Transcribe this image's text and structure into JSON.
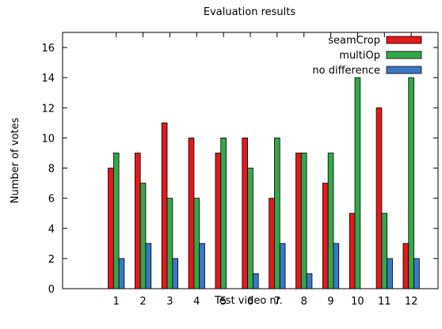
{
  "chart_data": {
    "type": "bar",
    "title": "Evaluation results",
    "xlabel": "Test video nr.",
    "ylabel": "Number of votes",
    "categories": [
      "1",
      "2",
      "3",
      "4",
      "5",
      "6",
      "7",
      "8",
      "9",
      "10",
      "11",
      "12"
    ],
    "ylim": [
      0,
      17
    ],
    "yticks": [
      0,
      2,
      4,
      6,
      8,
      10,
      12,
      14,
      16
    ],
    "xlim": [
      -1,
      13
    ],
    "grid": false,
    "legend_position": "top-right",
    "series": [
      {
        "name": "seamCrop",
        "color": "#e31a1c",
        "values": [
          8,
          9,
          11,
          10,
          9,
          10,
          6,
          9,
          7,
          5,
          12,
          3
        ]
      },
      {
        "name": "multiOp",
        "color": "#33a84a",
        "values": [
          9,
          7,
          6,
          6,
          10,
          8,
          10,
          9,
          9,
          14,
          5,
          14
        ]
      },
      {
        "name": "no difference",
        "color": "#3a78c2",
        "values": [
          2,
          3,
          2,
          3,
          0,
          1,
          3,
          1,
          3,
          0,
          2,
          2
        ]
      }
    ]
  }
}
